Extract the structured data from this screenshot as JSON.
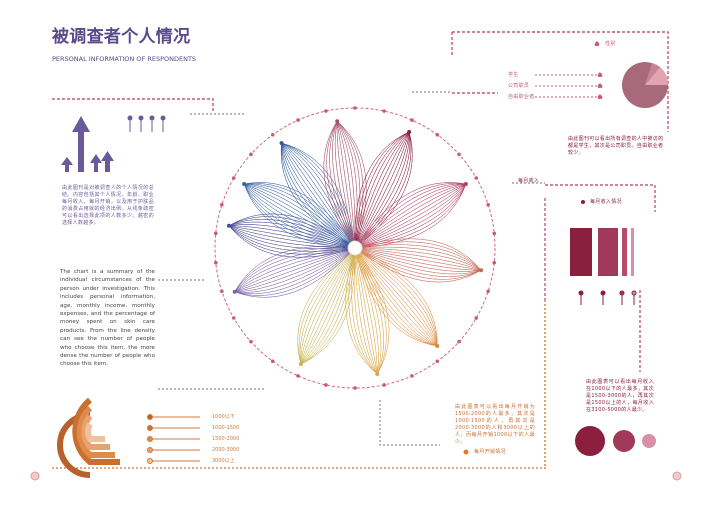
{
  "header": {
    "title": "被调查者个人情况",
    "subtitle": "PERSONAL INFORMATION OF RESPONDENTS"
  },
  "intro": {
    "zh": "由此图刊是对被调查人的个人情况的总结。内容包括其个人情况，年龄、职业每月收入、每月开销，以及用于护肤品的消费占用就的经济出例。从线条疏密可以看出选择此项的人数多少。越密的选择人数越多。",
    "en": "The chart is a summary of the individual circumstances of the person under investigation. This includes personal information, age, monthly income, monthly expenses, and the percentage of money spent on skin care products. From the line density can see the number of people who choose this item, the more dense the number of people who choose this item."
  },
  "gender": {
    "label": "性别"
  },
  "occupation": {
    "items": [
      "学生",
      "公司职员",
      "自由职业者"
    ],
    "note": "由此图刊可以看出所有调查的人中被访的都是学生，其次是公司职员。自由职业者较少。"
  },
  "income": {
    "label": "每月收入",
    "title": "每月收入情况",
    "note": "由此图表可以看出每月收入在1000以下的人最多，其次是1500-3000的人，再其次是1500以上的人，每月收入在3100-5000的人最少。"
  },
  "expense": {
    "title": "每月开销情况",
    "legend": [
      "1000以下",
      "1000-1500",
      "1500-2000",
      "2000-3000",
      "3000以上"
    ],
    "note": "由此图表可以看出每月开销为1500-2000的人最多，其次是1000-1500的人，再其次是2000-3000的人和3000以上的人，而每月开销1000以下的人最少。"
  }
}
